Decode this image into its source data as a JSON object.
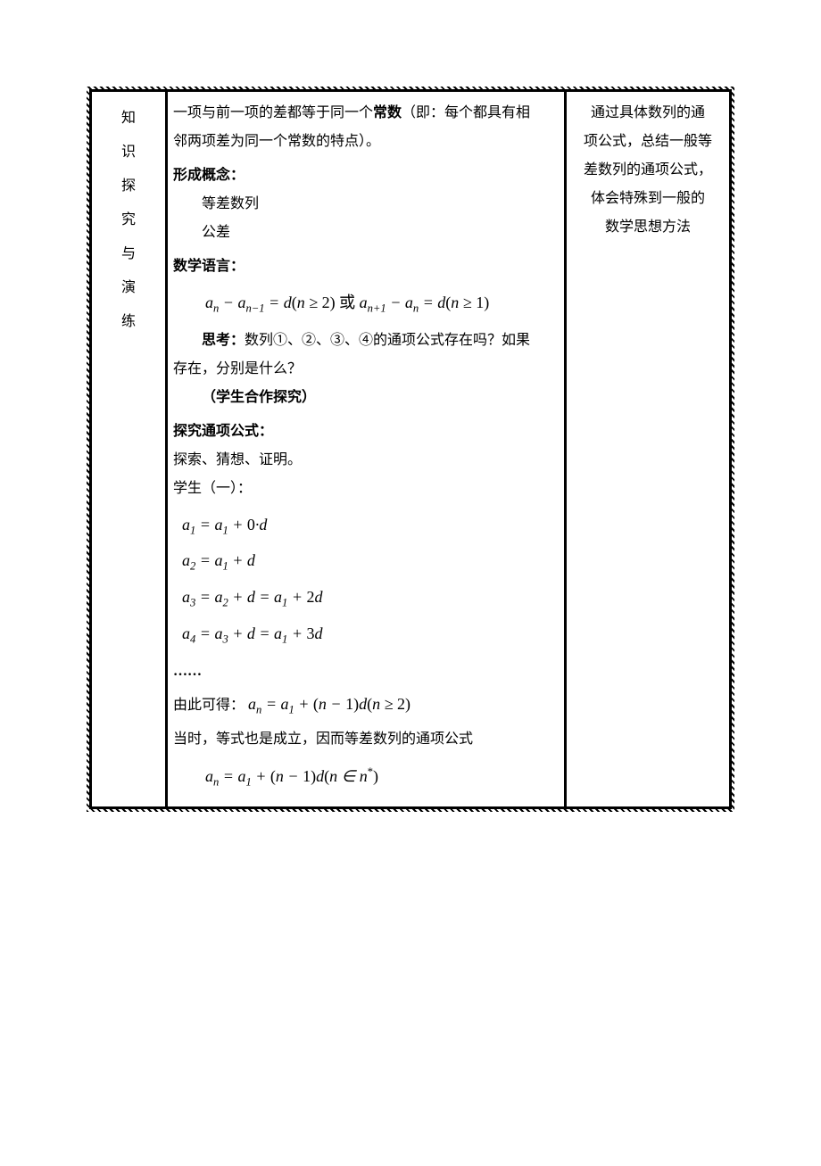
{
  "leftColumn": {
    "c1": "知",
    "c2": "识",
    "c3": "探",
    "c4": "究",
    "c5": "与",
    "c6": "演",
    "c7": "练"
  },
  "mid": {
    "line1a": "一项与前一项的差都等于同一个",
    "line1b": "常数",
    "line1c": "（即：每个都具有相",
    "line2": "邻两项差为同一个常数的特点）。",
    "h_concept": "形成概念：",
    "concept1": "等差数列",
    "concept2": "公差",
    "h_lang": "数学语言：",
    "f_lang_1": "a",
    "f_lang_sub_n": "n",
    "f_lang_minus": " − ",
    "f_lang_sub_nm1": "n−1",
    "f_lang_eq": " = d (n ≥ 2) ",
    "f_lang_or": "或",
    "f_lang_sub_np1": "n+1",
    "f_lang_eq2": " = d (n ≥ 1)",
    "think_label": "思考：",
    "think_text1": "数列①、②、③、④的通项公式存在吗？如果",
    "think_text2": "存在，分别是什么？",
    "collab": "（学生合作探究）",
    "h_explore": "探究通项公式：",
    "explore_line": "探索、猜想、证明。",
    "student1": "学生（一）：",
    "f1_pre": "a",
    "f1": " = a₁ + 0·d",
    "f2": " = a₁ + d",
    "f3": " = a₂ + d = a₁ + 2d",
    "f4": " = a₃ + d = a₁ + 3d",
    "dots": "……",
    "derive_pre": "由此可得：",
    "derive_f": "aₙ = a₁ + (n − 1)d (n ≥ 2)",
    "when_line": "当时，等式也是成立，因而等差数列的通项公式",
    "final_f": "aₙ = a₁ + (n − 1)d (n ∈ n*)",
    "sub1": "1",
    "sub2": "2",
    "sub3": "3",
    "sub4": "4"
  },
  "right": {
    "l1": "通过具体数列的通",
    "l2": "项公式，总结一般等",
    "l3": "差数列的通项公式，",
    "l4": "体会特殊到一般的",
    "l5": "数学思想方法"
  }
}
